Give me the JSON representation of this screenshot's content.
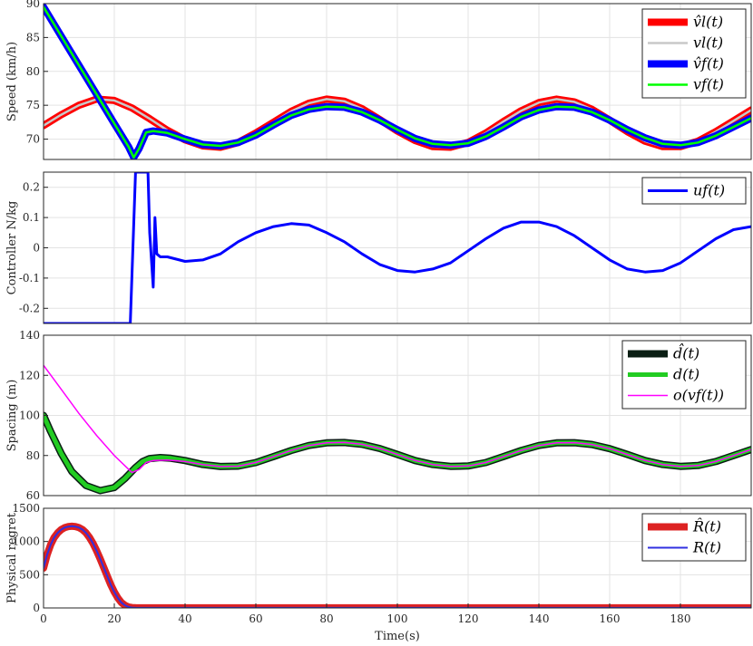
{
  "xaxis": {
    "label": "Time(s)",
    "ticks": [
      0,
      20,
      40,
      60,
      80,
      100,
      120,
      140,
      160,
      180
    ],
    "lim": [
      0,
      200
    ]
  },
  "chart_data": [
    {
      "type": "line",
      "ylabel": "Speed (km/h)",
      "ylim": [
        67,
        90
      ],
      "yticks": [
        70,
        75,
        80,
        85,
        90
      ],
      "grid": true,
      "legend": "top-right",
      "legend_labels": [
        "v̂l(t)",
        "vl(t)",
        "v̂f(t)",
        "vf(t)"
      ],
      "series": [
        {
          "name": "v̂l(t)",
          "color": "#ff0000",
          "x": [
            0,
            5,
            10,
            15,
            20,
            25,
            30,
            35,
            40,
            45,
            50,
            55,
            60,
            65,
            70,
            75,
            80,
            85,
            90,
            95,
            100,
            105,
            110,
            115,
            120,
            125,
            130,
            135,
            140,
            145,
            150,
            155,
            160,
            165,
            170,
            175,
            180,
            185,
            190,
            195,
            200
          ],
          "y": [
            72,
            73.6,
            75,
            75.9,
            75.7,
            74.6,
            73,
            71.3,
            69.9,
            69,
            68.8,
            69.5,
            70.9,
            72.5,
            74.1,
            75.3,
            75.9,
            75.6,
            74.5,
            72.9,
            71.2,
            69.8,
            68.9,
            68.8,
            69.5,
            70.9,
            72.6,
            74.2,
            75.4,
            75.9,
            75.5,
            74.4,
            72.8,
            71.1,
            69.7,
            68.9,
            68.9,
            69.7,
            71.1,
            72.7,
            74.3
          ]
        },
        {
          "name": "vl(t)",
          "color": "#c8c8c8",
          "x": [
            0,
            5,
            10,
            15,
            20,
            25,
            30,
            35,
            40,
            45,
            50,
            55,
            60,
            65,
            70,
            75,
            80,
            85,
            90,
            95,
            100,
            105,
            110,
            115,
            120,
            125,
            130,
            135,
            140,
            145,
            150,
            155,
            160,
            165,
            170,
            175,
            180,
            185,
            190,
            195,
            200
          ],
          "y": [
            72,
            73.6,
            75,
            75.9,
            75.7,
            74.6,
            73,
            71.3,
            69.9,
            69,
            68.8,
            69.5,
            70.9,
            72.5,
            74.1,
            75.3,
            75.9,
            75.6,
            74.5,
            72.9,
            71.2,
            69.8,
            68.9,
            68.8,
            69.5,
            70.9,
            72.6,
            74.2,
            75.4,
            75.9,
            75.5,
            74.4,
            72.8,
            71.1,
            69.7,
            68.9,
            68.9,
            69.7,
            71.1,
            72.7,
            74.3
          ]
        },
        {
          "name": "v̂f(t)",
          "color": "#0000ff",
          "x": [
            0,
            5,
            10,
            15,
            20,
            24,
            25.5,
            27,
            29,
            31,
            35,
            40,
            45,
            50,
            55,
            60,
            65,
            70,
            75,
            80,
            85,
            90,
            95,
            100,
            105,
            110,
            115,
            120,
            125,
            130,
            135,
            140,
            145,
            150,
            155,
            160,
            165,
            170,
            175,
            180,
            185,
            190,
            195,
            200
          ],
          "y": [
            89.5,
            85.2,
            80.9,
            76.6,
            72.3,
            68.9,
            67.3,
            68.6,
            71,
            71.2,
            70.9,
            70,
            69.2,
            69,
            69.5,
            70.6,
            72.1,
            73.5,
            74.4,
            74.8,
            74.7,
            74,
            72.8,
            71.4,
            70.1,
            69.3,
            69.1,
            69.4,
            70.4,
            71.8,
            73.3,
            74.3,
            74.8,
            74.7,
            74,
            72.8,
            71.4,
            70.2,
            69.3,
            69.1,
            69.5,
            70.5,
            71.8,
            73.1
          ]
        },
        {
          "name": "vf(t)",
          "color": "#00ff00",
          "x": [
            0,
            5,
            10,
            15,
            20,
            24,
            25.5,
            27,
            29,
            31,
            35,
            40,
            45,
            50,
            55,
            60,
            65,
            70,
            75,
            80,
            85,
            90,
            95,
            100,
            105,
            110,
            115,
            120,
            125,
            130,
            135,
            140,
            145,
            150,
            155,
            160,
            165,
            170,
            175,
            180,
            185,
            190,
            195,
            200
          ],
          "y": [
            89.5,
            85.2,
            80.9,
            76.6,
            72.3,
            68.9,
            67.3,
            68.6,
            71,
            71.2,
            70.9,
            70,
            69.2,
            69,
            69.5,
            70.6,
            72.1,
            73.5,
            74.4,
            74.8,
            74.7,
            74,
            72.8,
            71.4,
            70.1,
            69.3,
            69.1,
            69.4,
            70.4,
            71.8,
            73.3,
            74.3,
            74.8,
            74.7,
            74,
            72.8,
            71.4,
            70.2,
            69.3,
            69.1,
            69.5,
            70.5,
            71.8,
            73.1
          ]
        }
      ]
    },
    {
      "type": "line",
      "ylabel": "Controller N/kg",
      "ylim": [
        -0.25,
        0.25
      ],
      "yticks": [
        -0.2,
        -0.1,
        0,
        0.1,
        0.2
      ],
      "yticklabels": [
        "-0.2",
        "-0.1",
        "0",
        "0.1",
        "0.2"
      ],
      "grid": true,
      "legend": "top-right",
      "legend_labels": [
        "uf(t)"
      ],
      "series": [
        {
          "name": "uf(t)",
          "color": "#0000ff",
          "x": [
            0,
            24.5,
            26,
            26.5,
            29.5,
            30,
            31,
            31.5,
            32,
            33,
            35,
            40,
            45,
            50,
            55,
            60,
            65,
            70,
            75,
            80,
            85,
            90,
            95,
            100,
            105,
            110,
            115,
            120,
            125,
            130,
            135,
            140,
            145,
            150,
            155,
            160,
            165,
            170,
            175,
            180,
            185,
            190,
            195,
            200
          ],
          "y": [
            -0.25,
            -0.25,
            0.25,
            0.25,
            0.25,
            0.05,
            -0.13,
            0.1,
            -0.02,
            -0.03,
            -0.03,
            -0.045,
            -0.04,
            -0.02,
            0.02,
            0.05,
            0.07,
            0.08,
            0.075,
            0.05,
            0.02,
            -0.02,
            -0.055,
            -0.075,
            -0.08,
            -0.07,
            -0.05,
            -0.01,
            0.03,
            0.065,
            0.085,
            0.085,
            0.07,
            0.04,
            0.0,
            -0.04,
            -0.07,
            -0.08,
            -0.075,
            -0.05,
            -0.01,
            0.03,
            0.06,
            0.07
          ]
        }
      ]
    },
    {
      "type": "line",
      "ylabel": "Spacing (m)",
      "ylim": [
        60,
        140
      ],
      "yticks": [
        60,
        80,
        100,
        120,
        140
      ],
      "grid": true,
      "legend": "top-right",
      "legend_labels": [
        "d̂(t)",
        "d(t)",
        "o(vf(t))"
      ],
      "series": [
        {
          "name": "d̂(t)",
          "color": "#0a1e14",
          "x": [
            0,
            2,
            5,
            8,
            12,
            16,
            20,
            23,
            26,
            28,
            30,
            33,
            36,
            40,
            45,
            50,
            55,
            60,
            65,
            70,
            75,
            80,
            85,
            90,
            95,
            100,
            105,
            110,
            115,
            120,
            125,
            130,
            135,
            140,
            145,
            150,
            155,
            160,
            165,
            170,
            175,
            180,
            185,
            190,
            195,
            200
          ],
          "y": [
            100,
            92,
            81,
            72,
            65,
            62.5,
            64,
            68.5,
            74,
            77,
            78.5,
            79,
            78.6,
            77.5,
            75.5,
            74.5,
            74.7,
            76.5,
            79.5,
            82.5,
            85,
            86.3,
            86.5,
            85.6,
            83.5,
            80.5,
            77.5,
            75.5,
            74.6,
            74.8,
            76.5,
            79.5,
            82.5,
            85,
            86.3,
            86.4,
            85.5,
            83.4,
            80.5,
            77.5,
            75.5,
            74.6,
            75,
            77,
            80,
            83
          ]
        },
        {
          "name": "d(t)",
          "color": "#22cc22",
          "x": [
            0,
            2,
            5,
            8,
            12,
            16,
            20,
            23,
            26,
            28,
            30,
            33,
            36,
            40,
            45,
            50,
            55,
            60,
            65,
            70,
            75,
            80,
            85,
            90,
            95,
            100,
            105,
            110,
            115,
            120,
            125,
            130,
            135,
            140,
            145,
            150,
            155,
            160,
            165,
            170,
            175,
            180,
            185,
            190,
            195,
            200
          ],
          "y": [
            100,
            92,
            81,
            72,
            65,
            62.5,
            64,
            68.5,
            74,
            77,
            78.5,
            79,
            78.6,
            77.5,
            75.5,
            74.5,
            74.7,
            76.5,
            79.5,
            82.5,
            85,
            86.3,
            86.5,
            85.6,
            83.5,
            80.5,
            77.5,
            75.5,
            74.6,
            74.8,
            76.5,
            79.5,
            82.5,
            85,
            86.3,
            86.4,
            85.5,
            83.4,
            80.5,
            77.5,
            75.5,
            74.6,
            75,
            77,
            80,
            83
          ]
        },
        {
          "name": "o(vf(t))",
          "color": "#ff00ff",
          "x": [
            0,
            5,
            10,
            15,
            20,
            25,
            27,
            29,
            31,
            35,
            40,
            45,
            50,
            55,
            60,
            65,
            70,
            75,
            80,
            85,
            90,
            95,
            100,
            105,
            110,
            115,
            120,
            125,
            130,
            135,
            140,
            145,
            150,
            155,
            160,
            165,
            170,
            175,
            180,
            185,
            190,
            195,
            200
          ],
          "y": [
            125,
            113,
            101,
            90,
            80,
            71.5,
            73,
            76.5,
            77.5,
            77.7,
            77,
            75.5,
            74.5,
            74.7,
            76.5,
            79.5,
            82.5,
            85,
            86.3,
            86.5,
            85.6,
            83.5,
            80.5,
            77.5,
            75.5,
            74.6,
            74.8,
            76.5,
            79.5,
            82.5,
            85,
            86.3,
            86.4,
            85.5,
            83.4,
            80.5,
            77.5,
            75.5,
            74.6,
            75,
            77,
            80,
            83
          ]
        }
      ]
    },
    {
      "type": "line",
      "ylabel": "Physical regret",
      "ylim": [
        0,
        1500
      ],
      "yticks": [
        0,
        500,
        1000,
        1500
      ],
      "grid": true,
      "legend": "top-right",
      "legend_labels": [
        "R̂(t)",
        "R(t)"
      ],
      "series": [
        {
          "name": "R̂(t)",
          "color": "#dd2222",
          "x": [
            0,
            1,
            2,
            3,
            4,
            5,
            6,
            7,
            8,
            9,
            10,
            11,
            12,
            13,
            14,
            15,
            16,
            17,
            18,
            19,
            20,
            21,
            22,
            23,
            24,
            25,
            26,
            27,
            28,
            29,
            30,
            35,
            40,
            60,
            100,
            150,
            200
          ],
          "y": [
            600,
            800,
            950,
            1060,
            1130,
            1180,
            1210,
            1225,
            1230,
            1225,
            1210,
            1180,
            1130,
            1060,
            970,
            860,
            740,
            610,
            480,
            350,
            240,
            150,
            80,
            40,
            15,
            5,
            3,
            2,
            1,
            1,
            1,
            1,
            1,
            1,
            1,
            1,
            1
          ]
        },
        {
          "name": "R(t)",
          "color": "#3030e0",
          "x": [
            0,
            1,
            2,
            3,
            4,
            5,
            6,
            7,
            8,
            9,
            10,
            11,
            12,
            13,
            14,
            15,
            16,
            17,
            18,
            19,
            20,
            21,
            22,
            23,
            24,
            25,
            26,
            27,
            28,
            29,
            30,
            35,
            40,
            60,
            100,
            150,
            200
          ],
          "y": [
            600,
            800,
            950,
            1060,
            1130,
            1180,
            1210,
            1225,
            1230,
            1225,
            1210,
            1180,
            1130,
            1060,
            970,
            860,
            740,
            610,
            480,
            350,
            240,
            150,
            80,
            40,
            15,
            5,
            3,
            2,
            1,
            1,
            1,
            1,
            1,
            1,
            1,
            1,
            1
          ]
        }
      ]
    }
  ]
}
